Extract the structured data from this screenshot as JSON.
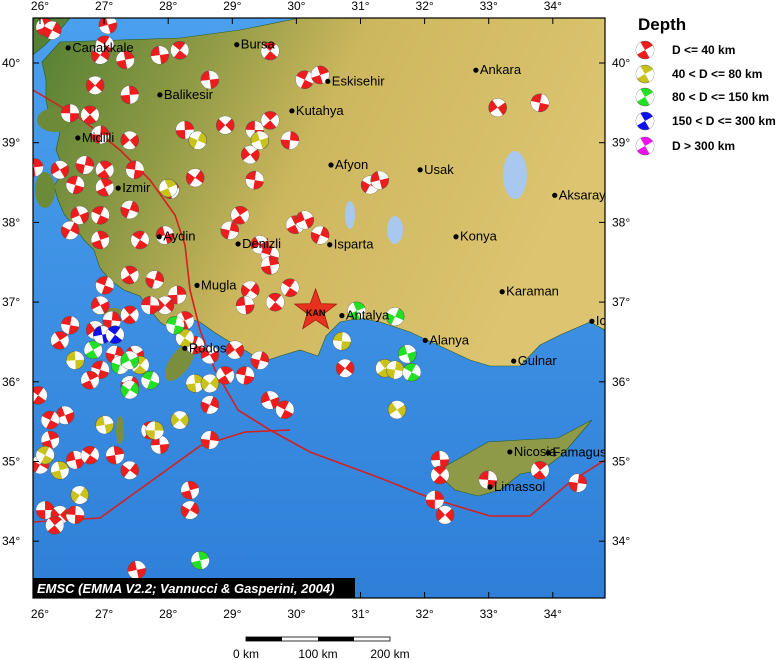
{
  "map": {
    "lon_ticks": [
      "26°",
      "27°",
      "28°",
      "29°",
      "30°",
      "31°",
      "32°",
      "33°",
      "34°"
    ],
    "lon_values": [
      26,
      27,
      28,
      29,
      30,
      31,
      32,
      33,
      34
    ],
    "lat_ticks": [
      "34°",
      "35°",
      "36°",
      "37°",
      "38°",
      "39°",
      "40°"
    ],
    "lat_values": [
      34,
      35,
      36,
      37,
      38,
      39,
      40
    ],
    "colors": {
      "sea": "#3f8fe0",
      "land": "#c9b35a",
      "lowland": "#5f8a3a",
      "plate_boundary": "#d42020"
    }
  },
  "cities": [
    {
      "name": "Canakkale",
      "lon": 26.44,
      "lat": 40.19
    },
    {
      "name": "Bursa",
      "lon": 29.07,
      "lat": 40.23
    },
    {
      "name": "Eskisehir",
      "lon": 30.49,
      "lat": 39.77
    },
    {
      "name": "Ankara",
      "lon": 32.8,
      "lat": 39.91
    },
    {
      "name": "Balikesir",
      "lon": 27.87,
      "lat": 39.6
    },
    {
      "name": "Kutahya",
      "lon": 29.93,
      "lat": 39.4
    },
    {
      "name": "Midilli",
      "lon": 26.59,
      "lat": 39.06
    },
    {
      "name": "Izmir",
      "lon": 27.22,
      "lat": 38.43
    },
    {
      "name": "Afyon",
      "lon": 30.54,
      "lat": 38.72
    },
    {
      "name": "Usak",
      "lon": 31.93,
      "lat": 38.66
    },
    {
      "name": "Aksaray",
      "lon": 34.03,
      "lat": 38.34
    },
    {
      "name": "Aydin",
      "lon": 27.86,
      "lat": 37.82
    },
    {
      "name": "Denizli",
      "lon": 29.09,
      "lat": 37.73
    },
    {
      "name": "Isparta",
      "lon": 30.52,
      "lat": 37.72
    },
    {
      "name": "Konya",
      "lon": 32.49,
      "lat": 37.82
    },
    {
      "name": "Mugla",
      "lon": 28.45,
      "lat": 37.21
    },
    {
      "name": "Karaman",
      "lon": 33.21,
      "lat": 37.13
    },
    {
      "name": "Antalya",
      "lon": 30.71,
      "lat": 36.83
    },
    {
      "name": "Alanya",
      "lon": 32.01,
      "lat": 36.52
    },
    {
      "name": "Gulnar",
      "lon": 33.39,
      "lat": 36.26
    },
    {
      "name": "Rodos",
      "lon": 28.26,
      "lat": 36.42
    },
    {
      "name": "Icel",
      "lon": 34.61,
      "lat": 36.76
    },
    {
      "name": "Nicosia",
      "lon": 33.33,
      "lat": 35.12
    },
    {
      "name": "Famagusta",
      "lon": 33.93,
      "lat": 35.11
    },
    {
      "name": "Limassol",
      "lon": 33.02,
      "lat": 34.68
    }
  ],
  "epicenter": {
    "label": "KAN",
    "lon": 30.3,
    "lat": 36.89,
    "color": "#e8321e"
  },
  "legend": {
    "title": "Depth",
    "items": [
      {
        "label": "D <= 40 km",
        "color": "#ee1c1c"
      },
      {
        "label": "40 < D <= 80 km",
        "color": "#c8c21a"
      },
      {
        "label": "80 < D <= 150 km",
        "color": "#22e022"
      },
      {
        "label": "150 < D <= 300 km",
        "color": "#1010ee"
      },
      {
        "label": "D > 300 km",
        "color": "#ee10ee"
      }
    ]
  },
  "events": [
    {
      "depth_class": 0,
      "points": [
        [
          26.08,
          40.45
        ],
        [
          26.19,
          40.41
        ],
        [
          27.06,
          40.48
        ],
        [
          27.01,
          40.23
        ],
        [
          27.33,
          40.04
        ],
        [
          26.94,
          40.1
        ],
        [
          27.87,
          40.1
        ],
        [
          28.18,
          40.16
        ],
        [
          27.4,
          39.6
        ],
        [
          26.86,
          39.72
        ],
        [
          26.47,
          39.37
        ],
        [
          26.78,
          39.35
        ],
        [
          26.94,
          39.1
        ],
        [
          27.4,
          39.03
        ],
        [
          27.48,
          38.66
        ],
        [
          27.01,
          38.66
        ],
        [
          26.7,
          38.72
        ],
        [
          26.31,
          38.66
        ],
        [
          26.55,
          38.47
        ],
        [
          27.01,
          38.44
        ],
        [
          27.4,
          38.16
        ],
        [
          26.62,
          38.09
        ],
        [
          26.94,
          38.09
        ],
        [
          26.94,
          37.78
        ],
        [
          26.47,
          37.9
        ],
        [
          27.95,
          37.84
        ],
        [
          27.56,
          37.78
        ],
        [
          28.03,
          38.41
        ],
        [
          28.42,
          38.56
        ],
        [
          28.65,
          39.79
        ],
        [
          29.59,
          40.15
        ],
        [
          28.26,
          39.16
        ],
        [
          28.89,
          39.22
        ],
        [
          29.35,
          39.16
        ],
        [
          29.59,
          39.28
        ],
        [
          29.9,
          39.03
        ],
        [
          29.28,
          38.85
        ],
        [
          29.35,
          38.53
        ],
        [
          29.12,
          38.09
        ],
        [
          28.96,
          37.9
        ],
        [
          29.43,
          37.72
        ],
        [
          29.59,
          37.59
        ],
        [
          29.98,
          37.97
        ],
        [
          30.37,
          37.84
        ],
        [
          30.13,
          38.03
        ],
        [
          30.13,
          39.79
        ],
        [
          30.37,
          39.85
        ],
        [
          31.15,
          38.47
        ],
        [
          31.3,
          38.53
        ],
        [
          29.9,
          37.18
        ],
        [
          29.59,
          37.46
        ],
        [
          29.28,
          37.15
        ],
        [
          29.2,
          36.96
        ],
        [
          29.67,
          37.0
        ],
        [
          28.14,
          37.09
        ],
        [
          27.95,
          36.96
        ],
        [
          27.72,
          36.96
        ],
        [
          27.4,
          36.84
        ],
        [
          27.12,
          36.77
        ],
        [
          26.86,
          36.65
        ],
        [
          26.47,
          36.71
        ],
        [
          26.31,
          36.52
        ],
        [
          27.17,
          36.34
        ],
        [
          27.48,
          36.34
        ],
        [
          26.94,
          36.15
        ],
        [
          26.78,
          36.02
        ],
        [
          27.4,
          35.96
        ],
        [
          26.39,
          35.58
        ],
        [
          26.16,
          35.52
        ],
        [
          26.16,
          35.27
        ],
        [
          26.0,
          34.96
        ],
        [
          26.55,
          35.02
        ],
        [
          26.78,
          35.08
        ],
        [
          27.17,
          35.08
        ],
        [
          27.4,
          34.89
        ],
        [
          27.87,
          35.21
        ],
        [
          27.72,
          35.39
        ],
        [
          26.08,
          34.39
        ],
        [
          26.31,
          34.33
        ],
        [
          26.55,
          34.33
        ],
        [
          26.23,
          34.2
        ],
        [
          28.65,
          35.27
        ],
        [
          29.04,
          36.4
        ],
        [
          29.2,
          36.08
        ],
        [
          28.89,
          36.08
        ],
        [
          29.43,
          36.27
        ],
        [
          28.65,
          36.34
        ],
        [
          28.42,
          36.46
        ],
        [
          28.26,
          36.77
        ],
        [
          28.65,
          35.71
        ],
        [
          29.59,
          35.77
        ],
        [
          29.82,
          35.65
        ],
        [
          28.34,
          34.64
        ],
        [
          28.34,
          34.39
        ],
        [
          27.51,
          33.64
        ],
        [
          25.97,
          35.83
        ],
        [
          25.91,
          38.69
        ],
        [
          30.76,
          36.17
        ],
        [
          32.24,
          35.02
        ],
        [
          32.24,
          34.83
        ],
        [
          32.16,
          34.52
        ],
        [
          32.32,
          34.33
        ],
        [
          32.99,
          34.77
        ],
        [
          33.8,
          34.89
        ],
        [
          34.39,
          34.73
        ],
        [
          33.14,
          39.44
        ],
        [
          33.8,
          39.5
        ],
        [
          27.4,
          37.34
        ],
        [
          27.79,
          37.28
        ],
        [
          26.94,
          36.96
        ],
        [
          27.01,
          37.21
        ]
      ]
    },
    {
      "depth_class": 1,
      "points": [
        [
          28.0,
          38.43
        ],
        [
          28.46,
          39.03
        ],
        [
          29.43,
          39.03
        ],
        [
          26.08,
          35.08
        ],
        [
          26.31,
          34.89
        ],
        [
          26.62,
          34.58
        ],
        [
          27.01,
          35.46
        ],
        [
          28.26,
          36.55
        ],
        [
          28.42,
          35.98
        ],
        [
          28.65,
          35.98
        ],
        [
          26.55,
          36.27
        ],
        [
          27.56,
          36.21
        ],
        [
          27.79,
          35.39
        ],
        [
          28.18,
          35.52
        ],
        [
          30.71,
          36.51
        ],
        [
          31.38,
          36.17
        ],
        [
          31.54,
          36.15
        ],
        [
          31.57,
          35.65
        ]
      ]
    },
    {
      "depth_class": 2,
      "points": [
        [
          28.11,
          36.71
        ],
        [
          26.83,
          36.4
        ],
        [
          27.25,
          36.21
        ],
        [
          27.4,
          36.27
        ],
        [
          27.72,
          36.02
        ],
        [
          30.94,
          36.89
        ],
        [
          31.54,
          36.82
        ],
        [
          31.73,
          36.35
        ],
        [
          31.8,
          36.12
        ],
        [
          28.5,
          33.76
        ],
        [
          27.4,
          35.9
        ]
      ]
    },
    {
      "depth_class": 3,
      "points": [
        [
          26.97,
          36.59
        ],
        [
          27.17,
          36.59
        ]
      ]
    }
  ],
  "attribution": "EMSC (EMMA V2.2; Vannucci & Gasperini, 2004)",
  "scale_bar": {
    "labels": [
      "0 km",
      "100 km",
      "200 km"
    ]
  }
}
